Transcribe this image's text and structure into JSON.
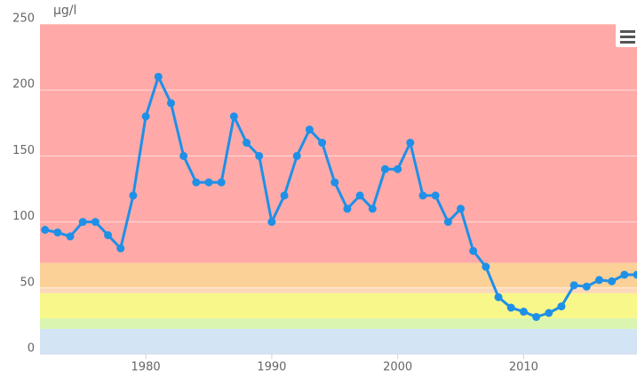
{
  "chart_data": {
    "type": "line",
    "y_unit_label": "µg/l",
    "x": [
      1972,
      1973,
      1974,
      1975,
      1976,
      1977,
      1978,
      1979,
      1980,
      1981,
      1982,
      1983,
      1984,
      1985,
      1986,
      1987,
      1988,
      1989,
      1990,
      1991,
      1992,
      1993,
      1994,
      1995,
      1996,
      1997,
      1998,
      1999,
      2000,
      2001,
      2002,
      2003,
      2004,
      2005,
      2006,
      2007,
      2008,
      2009,
      2010,
      2011,
      2012,
      2013,
      2014,
      2015,
      2016,
      2017,
      2018,
      2019
    ],
    "series": [
      {
        "color": "#1e90e8",
        "values": [
          94,
          92,
          89,
          100,
          100,
          90,
          80,
          120,
          180,
          210,
          190,
          150,
          130,
          130,
          130,
          180,
          160,
          150,
          100,
          120,
          150,
          170,
          160,
          130,
          110,
          120,
          110,
          140,
          140,
          160,
          120,
          120,
          100,
          110,
          78,
          66,
          43,
          35,
          32,
          28,
          31,
          36,
          52,
          51,
          56,
          55,
          60,
          60
        ]
      }
    ],
    "xlim": [
      1971.6,
      2019
    ],
    "xticks": [
      1980,
      1990,
      2000,
      2010
    ],
    "ylim": [
      0,
      250
    ],
    "yticks": [
      0,
      50,
      100,
      150,
      200,
      250
    ],
    "grid": true,
    "bands": [
      {
        "from": 0,
        "to": 19,
        "color": "#d3e5f4"
      },
      {
        "from": 19,
        "to": 27,
        "color": "#d9f5b0"
      },
      {
        "from": 27,
        "to": 46,
        "color": "#f7f78a"
      },
      {
        "from": 46,
        "to": 50,
        "color": "#fcd8b8"
      },
      {
        "from": 50,
        "to": 69,
        "color": "#fcd198"
      },
      {
        "from": 69,
        "to": 250,
        "color": "#ffaaa8"
      }
    ]
  }
}
